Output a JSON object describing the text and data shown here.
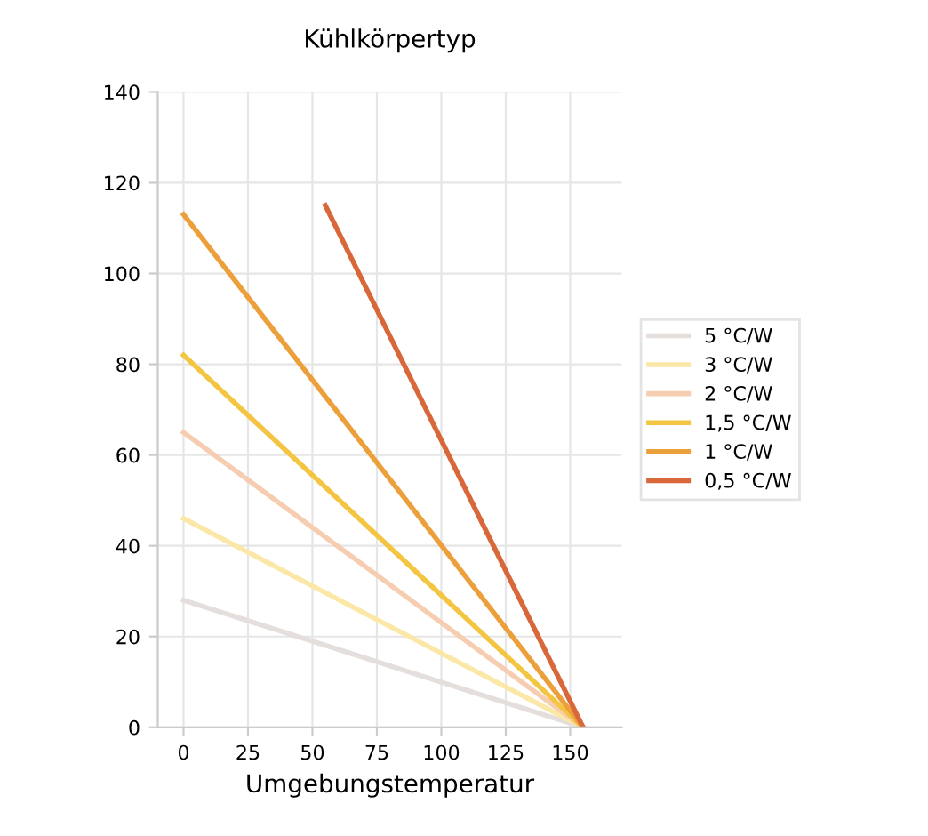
{
  "chart_data": {
    "type": "line",
    "title": "Kühlkörpertyp",
    "xlabel": "Umgebungstemperatur",
    "x": [
      0,
      155
    ],
    "series": [
      {
        "name": "5 °C/W",
        "color": "#e4dfdc",
        "values": [
          28,
          0
        ]
      },
      {
        "name": "3 °C/W",
        "color": "#fbe8a6",
        "values": [
          46,
          0
        ]
      },
      {
        "name": "2 °C/W",
        "color": "#f6cdb0",
        "values": [
          65,
          0
        ]
      },
      {
        "name": "1,5 °C/W",
        "color": "#f4c542",
        "values": [
          82,
          0
        ]
      },
      {
        "name": "1 °C/W",
        "color": "#eca03c",
        "values": [
          113,
          0
        ]
      },
      {
        "name": "0,5 °C/W",
        "color": "#d8673a",
        "x": [
          55,
          155
        ],
        "values": [
          115,
          0
        ]
      }
    ],
    "xlim": [
      -10,
      170
    ],
    "xticks": [
      0,
      25,
      50,
      75,
      100,
      125,
      150
    ],
    "ylim": [
      0,
      140
    ],
    "yticks": [
      0,
      20,
      40,
      60,
      80,
      100,
      120,
      140
    ],
    "grid": true,
    "legend": "right",
    "marker": "none",
    "line_style": "solid"
  }
}
